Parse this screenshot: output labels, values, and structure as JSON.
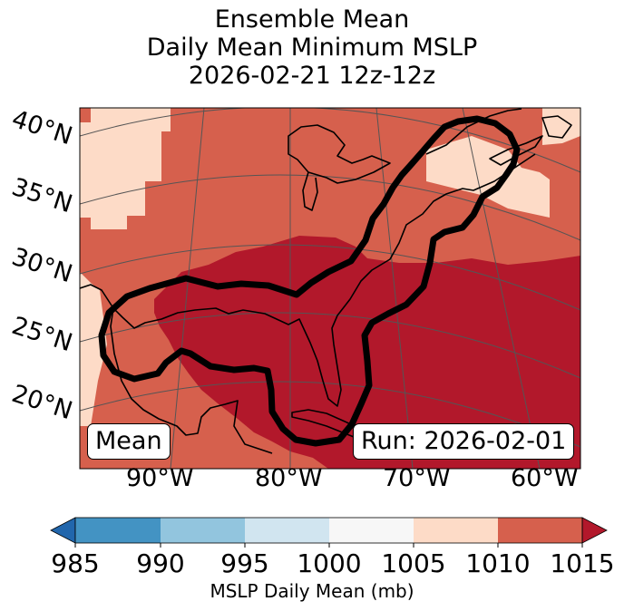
{
  "title": {
    "line1": "Ensemble Mean",
    "line2": "Daily Mean Minimum MSLP",
    "line3": "2026-02-21 12z-12z"
  },
  "map": {
    "lat_labels": [
      "40°N",
      "35°N",
      "30°N",
      "25°N",
      "20°N"
    ],
    "lon_labels": [
      "90°W",
      "80°W",
      "70°W",
      "60°W"
    ],
    "box_left": "Mean",
    "box_right": "Run: 2026-02-01",
    "colors": {
      "c1005_1010": "#fddbc7",
      "c1010_1015": "#d6604d",
      "c1015_plus": "#b2182b",
      "coast": "#000000",
      "contour": "#000000",
      "grid": "#555555"
    }
  },
  "colorbar": {
    "ticks": [
      "985",
      "990",
      "995",
      "1000",
      "1005",
      "1010",
      "1015"
    ],
    "label": "MSLP Daily Mean (mb)",
    "colors": [
      "#2166ac",
      "#4393c3",
      "#92c5de",
      "#d1e5f0",
      "#f7f7f7",
      "#fddbc7",
      "#d6604d",
      "#b2182b"
    ]
  }
}
